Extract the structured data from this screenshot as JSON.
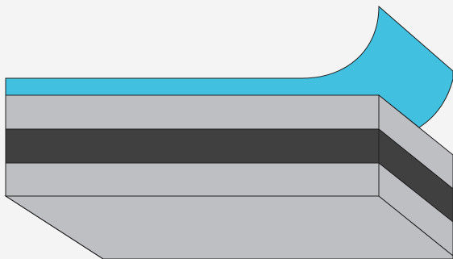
{
  "diagram": {
    "kind": "layered-stack-3d",
    "colors": {
      "background": "#f4f4f4",
      "peel_film": "#41c0e0",
      "light_layer": "#bebfc3",
      "dark_layer": "#404040",
      "outline": "#1f1f1f"
    },
    "layers": [
      {
        "name": "peeling-film",
        "color_key": "peel_film"
      },
      {
        "name": "upper-light-layer",
        "color_key": "light_layer"
      },
      {
        "name": "middle-dark-layer",
        "color_key": "dark_layer"
      },
      {
        "name": "lower-light-layer",
        "color_key": "light_layer"
      },
      {
        "name": "base-slab",
        "color_key": "light_layer"
      }
    ]
  }
}
